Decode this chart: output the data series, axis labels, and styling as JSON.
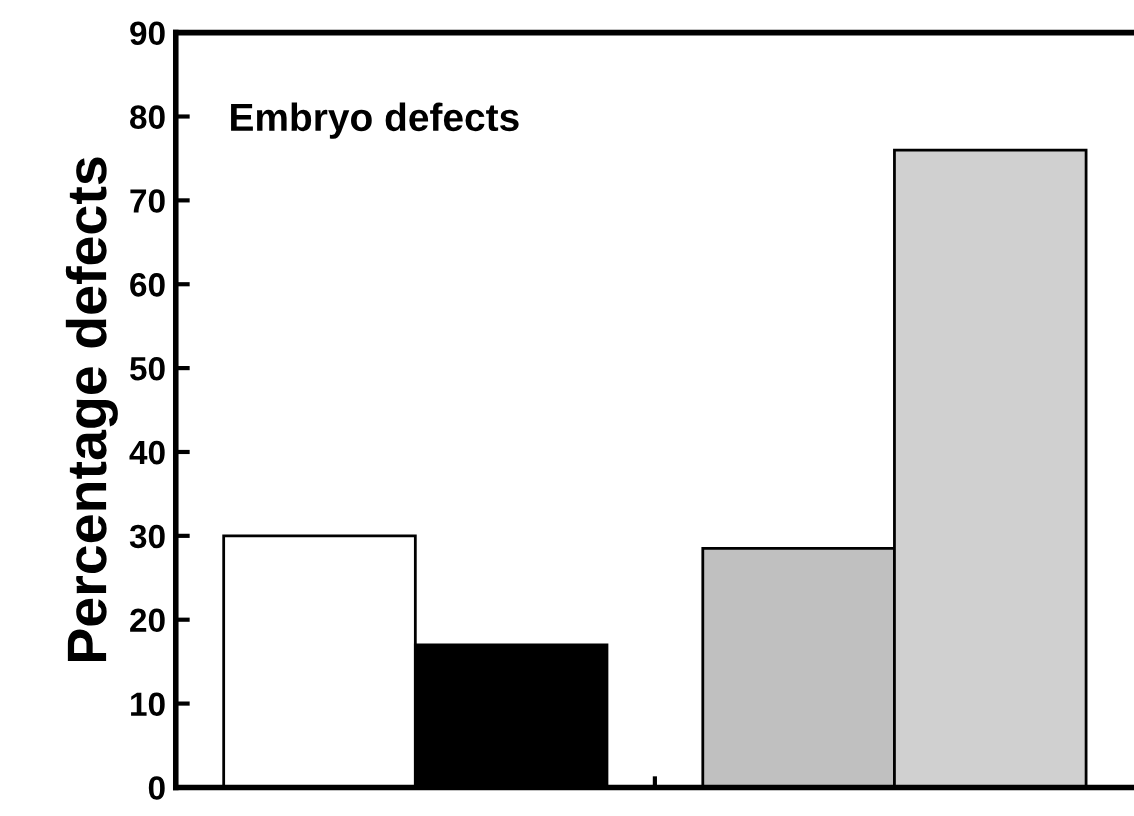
{
  "chart_data": {
    "type": "bar",
    "ylabel": "Percentage defects",
    "annotations": [
      "Embryo defects"
    ],
    "categories": [
      null,
      null
    ],
    "series": [
      {
        "colors": [
          "#ffffff",
          "#c0c0c0"
        ],
        "values": [
          30,
          28.5
        ]
      },
      {
        "colors": [
          "#000000",
          "#d0d0d0"
        ],
        "values": [
          17,
          76
        ]
      }
    ],
    "ylim": [
      0,
      90
    ],
    "yticks": [
      0,
      10,
      20,
      30,
      40,
      50,
      60,
      70,
      80,
      90
    ],
    "grid": false,
    "tick_labels": "y"
  }
}
